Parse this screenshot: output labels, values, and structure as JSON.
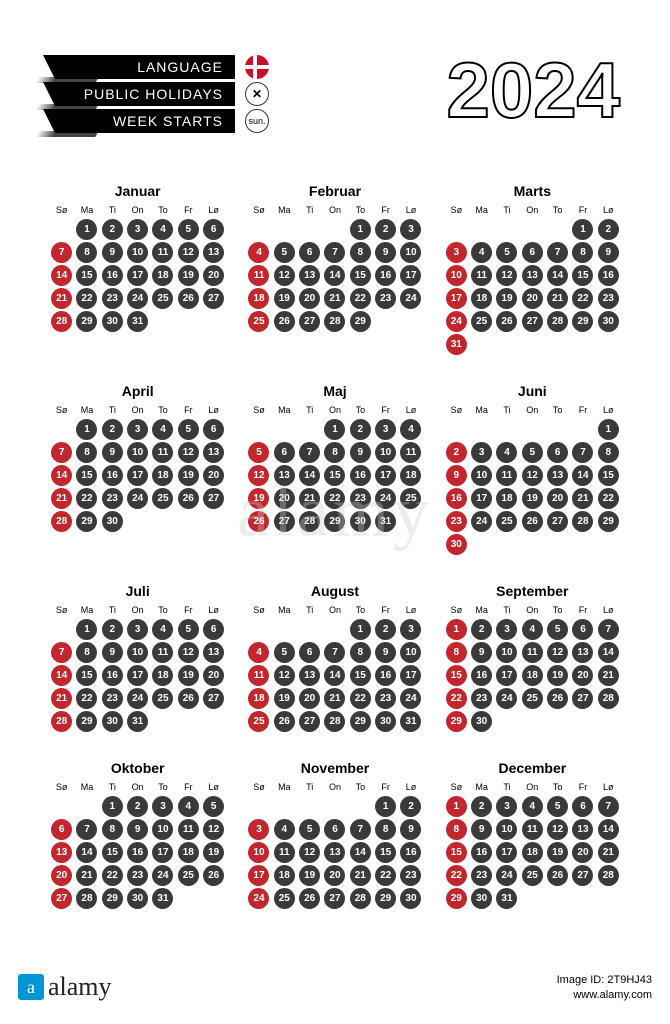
{
  "header": {
    "rows": [
      {
        "label": "LANGUAGE",
        "icon": "flag"
      },
      {
        "label": "PUBLIC HOLIDAYS",
        "icon": "x"
      },
      {
        "label": "WEEK STARTS",
        "icon": "sun"
      }
    ],
    "year": "2024"
  },
  "colors": {
    "weekday": "#3a3a3a",
    "sunday": "#c1272d",
    "background": "#ffffff"
  },
  "weekdays": [
    "Sø",
    "Ma",
    "Ti",
    "On",
    "To",
    "Fr",
    "Lø"
  ],
  "months": [
    {
      "name": "Januar",
      "startDow": 1,
      "days": 31
    },
    {
      "name": "Februar",
      "startDow": 4,
      "days": 29
    },
    {
      "name": "Marts",
      "startDow": 5,
      "days": 31
    },
    {
      "name": "April",
      "startDow": 1,
      "days": 30
    },
    {
      "name": "Maj",
      "startDow": 3,
      "days": 31
    },
    {
      "name": "Juni",
      "startDow": 6,
      "days": 30
    },
    {
      "name": "Juli",
      "startDow": 1,
      "days": 31
    },
    {
      "name": "August",
      "startDow": 4,
      "days": 31
    },
    {
      "name": "September",
      "startDow": 0,
      "days": 30
    },
    {
      "name": "Oktober",
      "startDow": 2,
      "days": 31
    },
    {
      "name": "November",
      "startDow": 5,
      "days": 30
    },
    {
      "name": "December",
      "startDow": 0,
      "days": 31
    }
  ],
  "watermark": "alamy",
  "footer": {
    "brand": "alamy",
    "imageId": "Image ID: 2T9HJ43",
    "site": "www.alamy.com"
  },
  "sunLabel": "sun."
}
